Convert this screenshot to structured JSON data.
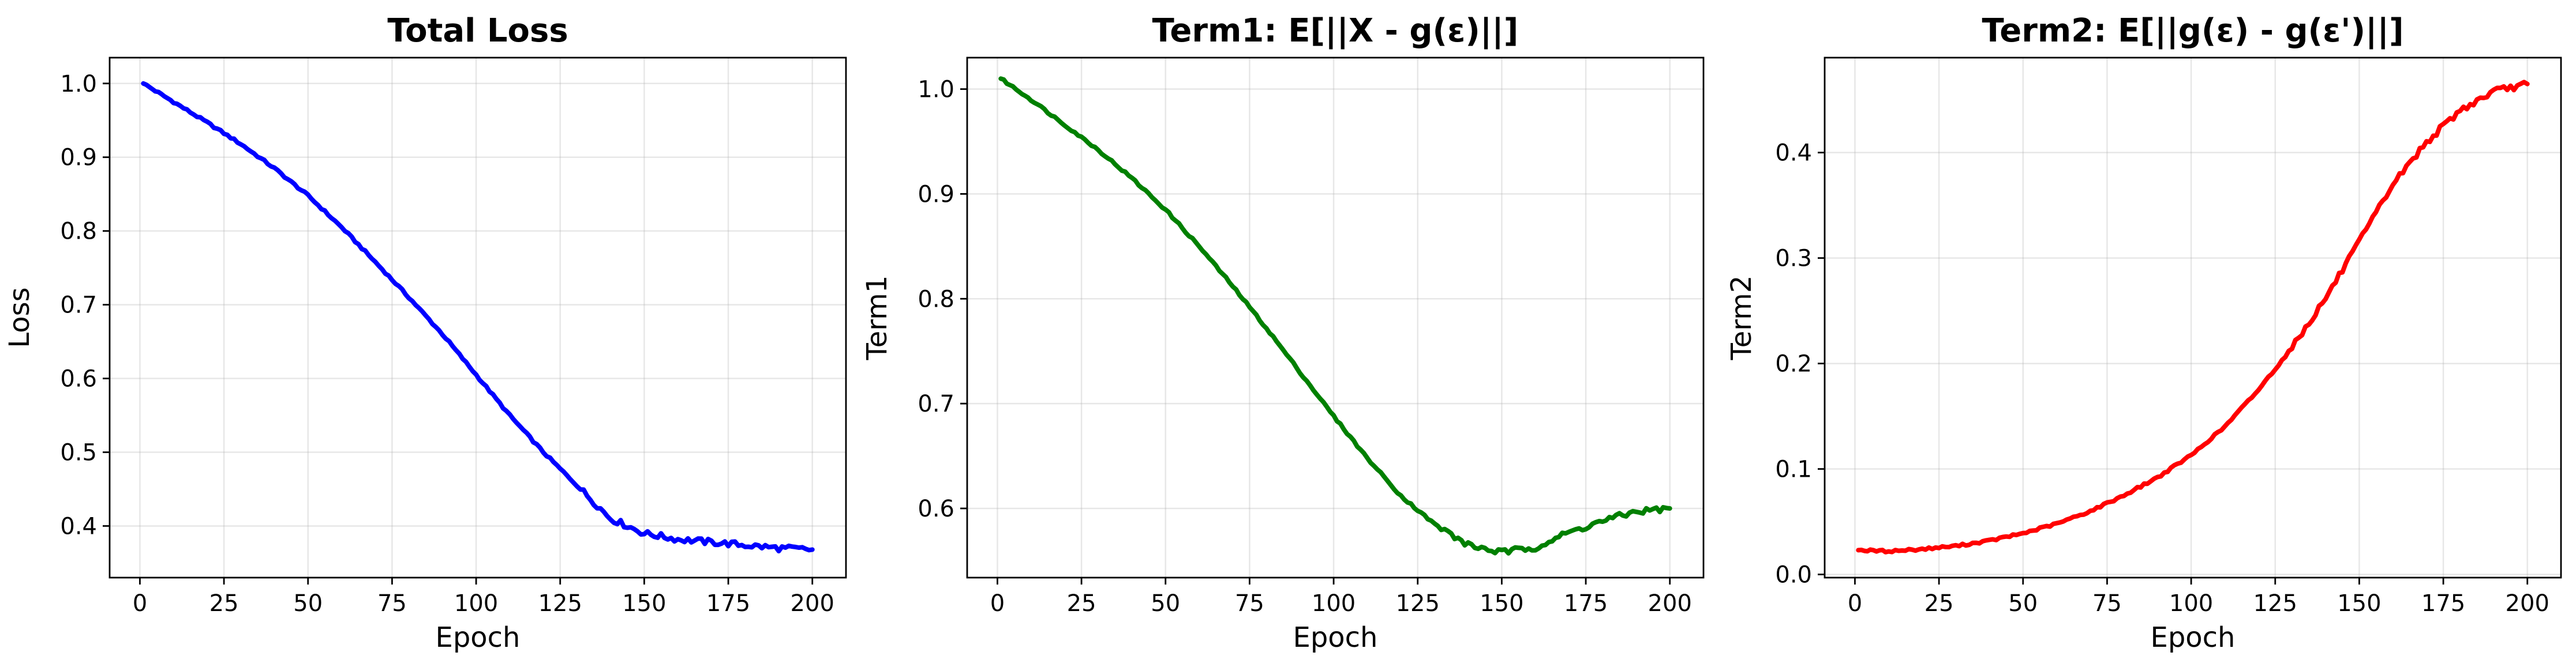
{
  "chart_data": [
    {
      "type": "line",
      "title": "Total Loss",
      "xlabel": "Epoch",
      "ylabel": "Loss",
      "xlim": [
        -9,
        210
      ],
      "ylim": [
        0.33,
        1.035
      ],
      "xticks": [
        0,
        25,
        50,
        75,
        100,
        125,
        150,
        175,
        200
      ],
      "yticks": [
        0.4,
        0.5,
        0.6,
        0.7,
        0.8,
        0.9,
        1.0
      ],
      "grid": true,
      "series": [
        {
          "color": "#0000ff",
          "x": [
            1,
            10,
            20,
            30,
            40,
            50,
            60,
            70,
            80,
            90,
            100,
            110,
            120,
            130,
            140,
            150,
            160,
            170,
            180,
            190,
            200
          ],
          "y": [
            1.0,
            0.975,
            0.947,
            0.918,
            0.885,
            0.848,
            0.805,
            0.758,
            0.71,
            0.66,
            0.605,
            0.55,
            0.5,
            0.455,
            0.41,
            0.39,
            0.382,
            0.378,
            0.374,
            0.37,
            0.368
          ]
        }
      ]
    },
    {
      "type": "line",
      "title": "Term1: E[||X - g(ε)||]",
      "xlabel": "Epoch",
      "ylabel": "Term1",
      "xlim": [
        -9,
        210
      ],
      "ylim": [
        0.534,
        1.03
      ],
      "xticks": [
        0,
        25,
        50,
        75,
        100,
        125,
        150,
        175,
        200
      ],
      "yticks": [
        0.6,
        0.7,
        0.8,
        0.9,
        1.0
      ],
      "grid": true,
      "series": [
        {
          "color": "#008000",
          "x": [
            1,
            10,
            20,
            30,
            40,
            50,
            60,
            70,
            80,
            90,
            100,
            110,
            120,
            130,
            140,
            150,
            160,
            170,
            180,
            190,
            200
          ],
          "y": [
            1.01,
            0.99,
            0.966,
            0.942,
            0.915,
            0.885,
            0.85,
            0.812,
            0.772,
            0.73,
            0.688,
            0.648,
            0.612,
            0.585,
            0.565,
            0.558,
            0.563,
            0.577,
            0.588,
            0.597,
            0.6
          ]
        }
      ]
    },
    {
      "type": "line",
      "title": "Term2: E[||g(ε) - g(ε')||]",
      "xlabel": "Epoch",
      "ylabel": "Term2",
      "xlim": [
        -9,
        210
      ],
      "ylim": [
        -0.003,
        0.49
      ],
      "xticks": [
        0,
        25,
        50,
        75,
        100,
        125,
        150,
        175,
        200
      ],
      "yticks": [
        0.0,
        0.1,
        0.2,
        0.3,
        0.4
      ],
      "grid": true,
      "series": [
        {
          "color": "#ff0000",
          "x": [
            1,
            10,
            20,
            30,
            40,
            50,
            60,
            70,
            80,
            90,
            100,
            110,
            120,
            130,
            140,
            150,
            160,
            170,
            180,
            190,
            200
          ],
          "y": [
            0.023,
            0.022,
            0.024,
            0.027,
            0.032,
            0.039,
            0.048,
            0.06,
            0.075,
            0.092,
            0.113,
            0.14,
            0.175,
            0.215,
            0.262,
            0.315,
            0.37,
            0.41,
            0.44,
            0.458,
            0.465
          ]
        }
      ]
    }
  ]
}
